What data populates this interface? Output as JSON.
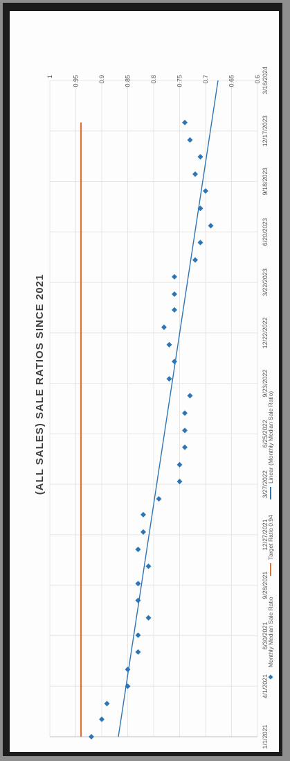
{
  "chart_data": {
    "type": "scatter",
    "title": "(ALL SALES) SALE RATIOS SINCE 2021",
    "xlabel": "",
    "ylabel": "",
    "x_ticks": [
      "1/1/2021",
      "4/1/2021",
      "6/30/2021",
      "9/28/2021",
      "12/27/2021",
      "3/27/2022",
      "6/25/2022",
      "9/23/2022",
      "12/22/2022",
      "3/22/2023",
      "6/20/2023",
      "9/18/2023",
      "12/17/2023",
      "3/16/2024"
    ],
    "y_ticks": [
      "0.6",
      "0.65",
      "0.7",
      "0.75",
      "0.8",
      "0.85",
      "0.9",
      "0.95",
      "1"
    ],
    "xlim": [
      "1/1/2021",
      "3/16/2024"
    ],
    "ylim": [
      0.6,
      1.0
    ],
    "grid": true,
    "orientation": "rotated 90° counter-clockwise",
    "legend_position": "bottom",
    "legend": [
      "Monthly Median Sale Ratio",
      "Target Ratio 0.94",
      "Linear (Monthly Median Sale Ratio)"
    ],
    "series": [
      {
        "name": "Monthly Median Sale Ratio",
        "kind": "points",
        "color": "#2e75b6",
        "points": [
          [
            "1/1/2021",
            0.92
          ],
          [
            "2/1/2021",
            0.9
          ],
          [
            "3/1/2021",
            0.89
          ],
          [
            "4/1/2021",
            0.85
          ],
          [
            "5/1/2021",
            0.85
          ],
          [
            "6/1/2021",
            0.83
          ],
          [
            "7/1/2021",
            0.83
          ],
          [
            "8/1/2021",
            0.81
          ],
          [
            "9/1/2021",
            0.83
          ],
          [
            "10/1/2021",
            0.83
          ],
          [
            "11/1/2021",
            0.81
          ],
          [
            "12/1/2021",
            0.83
          ],
          [
            "1/1/2022",
            0.82
          ],
          [
            "2/1/2022",
            0.82
          ],
          [
            "3/1/2022",
            0.79
          ],
          [
            "4/1/2022",
            0.75
          ],
          [
            "5/1/2022",
            0.75
          ],
          [
            "6/1/2022",
            0.74
          ],
          [
            "7/1/2022",
            0.74
          ],
          [
            "8/1/2022",
            0.74
          ],
          [
            "9/1/2022",
            0.73
          ],
          [
            "10/1/2022",
            0.77
          ],
          [
            "11/1/2022",
            0.76
          ],
          [
            "12/1/2022",
            0.77
          ],
          [
            "1/1/2023",
            0.78
          ],
          [
            "2/1/2023",
            0.76
          ],
          [
            "3/1/2023",
            0.76
          ],
          [
            "4/1/2023",
            0.76
          ],
          [
            "5/1/2023",
            0.72
          ],
          [
            "6/1/2023",
            0.71
          ],
          [
            "7/1/2023",
            0.69
          ],
          [
            "8/1/2023",
            0.71
          ],
          [
            "9/1/2023",
            0.7
          ],
          [
            "10/1/2023",
            0.72
          ],
          [
            "11/1/2023",
            0.71
          ],
          [
            "12/1/2023",
            0.73
          ],
          [
            "1/1/2024",
            0.74
          ]
        ]
      },
      {
        "name": "Target Ratio 0.94",
        "kind": "line",
        "color": "#e0702e",
        "points": [
          [
            "1/1/2021",
            0.94
          ],
          [
            "1/1/2024",
            0.94
          ]
        ]
      },
      {
        "name": "Linear (Monthly Median Sale Ratio)",
        "kind": "line",
        "color": "#2e75b6",
        "points": [
          [
            "1/1/2021",
            0.868
          ],
          [
            "3/16/2024",
            0.676
          ]
        ]
      }
    ]
  }
}
